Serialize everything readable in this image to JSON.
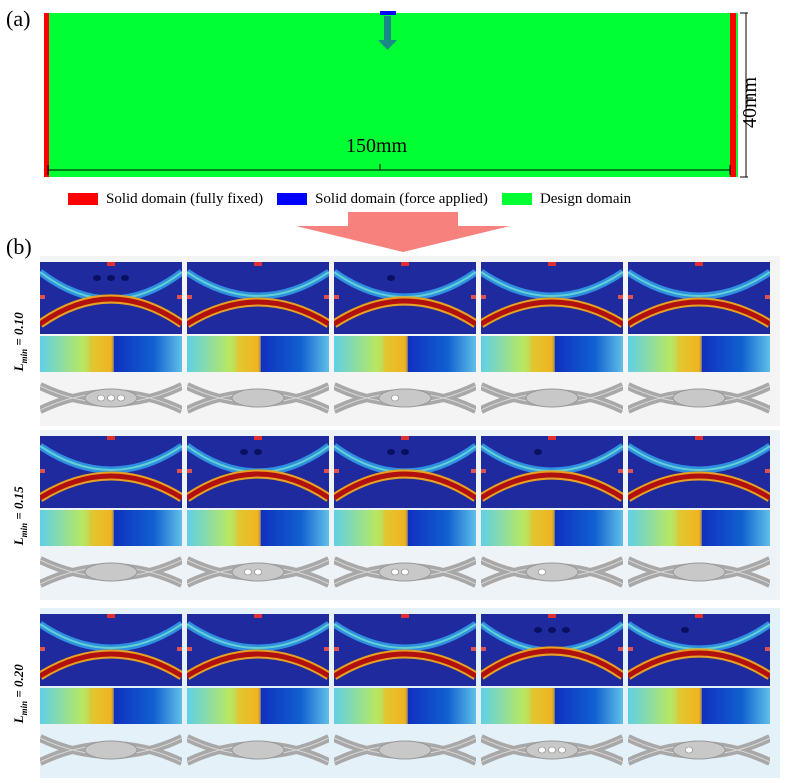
{
  "panel_a": {
    "label": "(a)",
    "width_label": "150mm",
    "height_label": "40mm",
    "colors": {
      "fixed": "#ff0000",
      "force": "#0000ff",
      "design": "#00ff33",
      "arrow": "#1a8a86"
    }
  },
  "legend": [
    {
      "label": "Solid domain (fully fixed)",
      "color": "#ff0000"
    },
    {
      "label": "Solid domain (force applied)",
      "color": "#0000ff"
    },
    {
      "label": "Design domain",
      "color": "#00ff33"
    }
  ],
  "panel_b": {
    "label": "(b)",
    "rows": [
      {
        "label": "L",
        "sub": "min",
        "value": "= 0.10",
        "bg": "#f4f4f4"
      },
      {
        "label": "L",
        "sub": "min",
        "value": "= 0.15",
        "bg": "#eef3f8"
      },
      {
        "label": "L",
        "sub": "min",
        "value": "= 0.20",
        "bg": "#e4f1f9"
      }
    ],
    "columns": 5
  }
}
